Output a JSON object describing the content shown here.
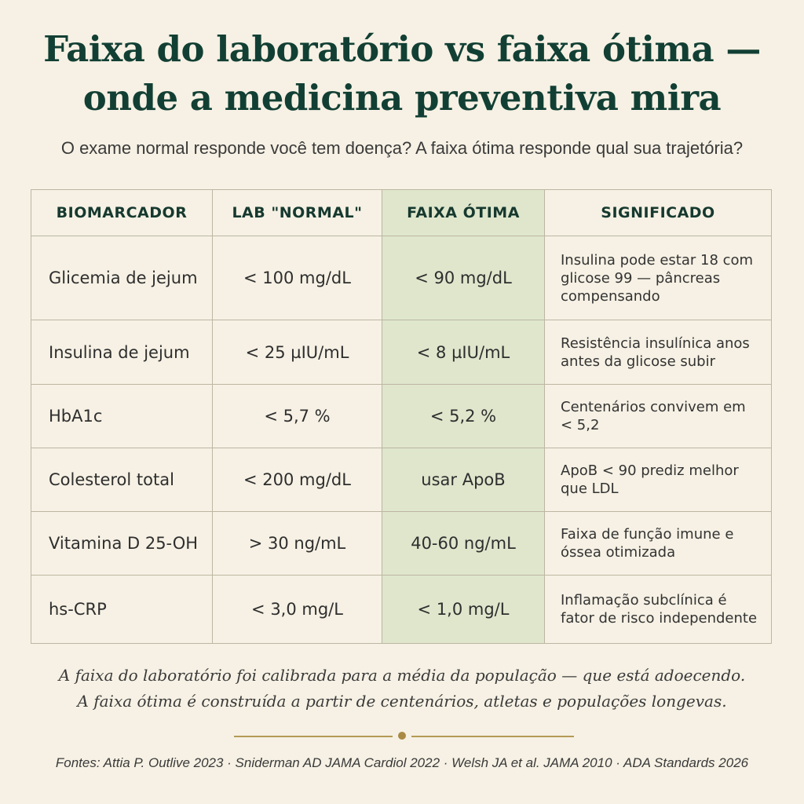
{
  "title": {
    "line1": "Faixa do laboratório vs faixa ótima —",
    "line2": "onde a medicina preventiva mira"
  },
  "subtitle": "O exame normal responde você tem doença? A faixa ótima responde qual sua trajetória?",
  "table": {
    "headers": [
      "BIOMARCADOR",
      "LAB \"NORMAL\"",
      "FAIXA ÓTIMA",
      "SIGNIFICADO"
    ],
    "rows": [
      {
        "biomarker": "Glicemia de jejum",
        "lab": "< 100 mg/dL",
        "optimal": "< 90 mg/dL",
        "meaning": "Insulina pode estar 18 com glicose 99 — pâncreas compensando"
      },
      {
        "biomarker": "Insulina de jejum",
        "lab": "< 25 µIU/mL",
        "optimal": "< 8 µIU/mL",
        "meaning": "Resistência insulínica anos antes da glicose subir"
      },
      {
        "biomarker": "HbA1c",
        "lab": "< 5,7 %",
        "optimal": "< 5,2 %",
        "meaning": "Centenários convivem em < 5,2"
      },
      {
        "biomarker": "Colesterol total",
        "lab": "< 200 mg/dL",
        "optimal": "usar ApoB",
        "meaning": "ApoB < 90 prediz melhor que LDL"
      },
      {
        "biomarker": "Vitamina D 25-OH",
        "lab": "> 30 ng/mL",
        "optimal": "40-60 ng/mL",
        "meaning": "Faixa de função imune e óssea otimizada"
      },
      {
        "biomarker": "hs-CRP",
        "lab": "< 3,0 mg/L",
        "optimal": "< 1,0 mg/L",
        "meaning": "Inflamação subclínica é fator de risco independente"
      }
    ]
  },
  "note": {
    "line1": "A faixa do laboratório foi calibrada para a média da população — que está adoecendo.",
    "line2": "A faixa ótima é construída a partir de centenários, atletas e populações longevas."
  },
  "sources": "Fontes: Attia P. Outlive 2023 · Sniderman AD JAMA Cardiol 2022 · Welsh JA et al. JAMA 2010 · ADA Standards 2026",
  "colors": {
    "title": "#123f34",
    "optimal_column": "#dfe6cc",
    "background": "#f6f1e4",
    "divider": "#b59a55"
  }
}
